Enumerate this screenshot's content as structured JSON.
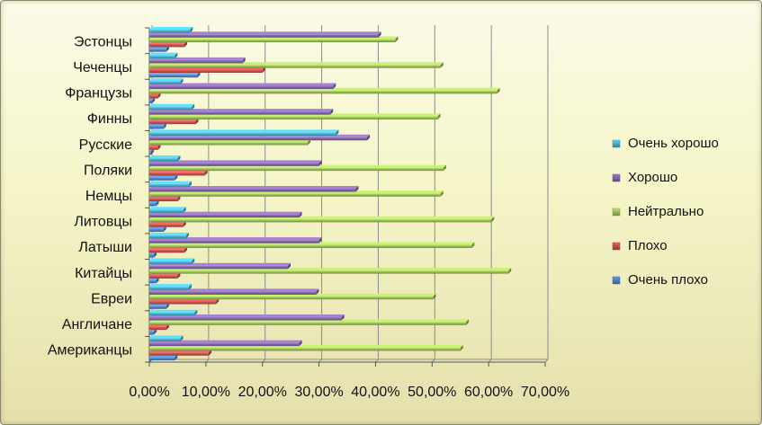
{
  "chart_data": {
    "type": "bar",
    "orientation": "horizontal",
    "categories": [
      "Американцы",
      "Англичане",
      "Евреи",
      "Китайцы",
      "Латыши",
      "Литовцы",
      "Немцы",
      "Поляки",
      "Русские",
      "Финны",
      "Французы",
      "Чеченцы",
      "Эстонцы"
    ],
    "series": [
      {
        "name": "Очень плохо",
        "color": "#4f81bd",
        "values": [
          4.5,
          0.8,
          3.0,
          1.2,
          0.8,
          2.5,
          1.2,
          4.5,
          0.3,
          2.5,
          0.5,
          8.5,
          3.0
        ]
      },
      {
        "name": "Плохо",
        "color": "#c0504d",
        "values": [
          10.5,
          3.0,
          11.8,
          5.0,
          6.2,
          6.0,
          5.0,
          9.8,
          1.5,
          8.2,
          1.5,
          20.0,
          6.2
        ]
      },
      {
        "name": "Нейтрально",
        "color": "#9bbb59",
        "values": [
          55.0,
          56.0,
          50.2,
          63.5,
          57.0,
          60.5,
          51.5,
          52.0,
          28.0,
          51.0,
          61.5,
          51.5,
          43.5
        ]
      },
      {
        "name": "Хорошо",
        "color": "#8064a2",
        "values": [
          26.5,
          34.0,
          29.5,
          24.5,
          30.0,
          26.5,
          36.5,
          30.0,
          38.5,
          32.0,
          32.5,
          16.5,
          40.5
        ]
      },
      {
        "name": "Очень хорошо",
        "color": "#4bacc6",
        "values": [
          5.5,
          8.0,
          7.0,
          7.5,
          6.5,
          6.0,
          7.0,
          5.0,
          33.0,
          7.5,
          5.5,
          4.5,
          7.2
        ]
      }
    ],
    "xlim": [
      0,
      70
    ],
    "xticks": [
      "0,00%",
      "10,00%",
      "20,00%",
      "30,00%",
      "40,00%",
      "50,00%",
      "60,00%",
      "70,00%"
    ],
    "legend_position": "right",
    "grid": "vertical"
  }
}
